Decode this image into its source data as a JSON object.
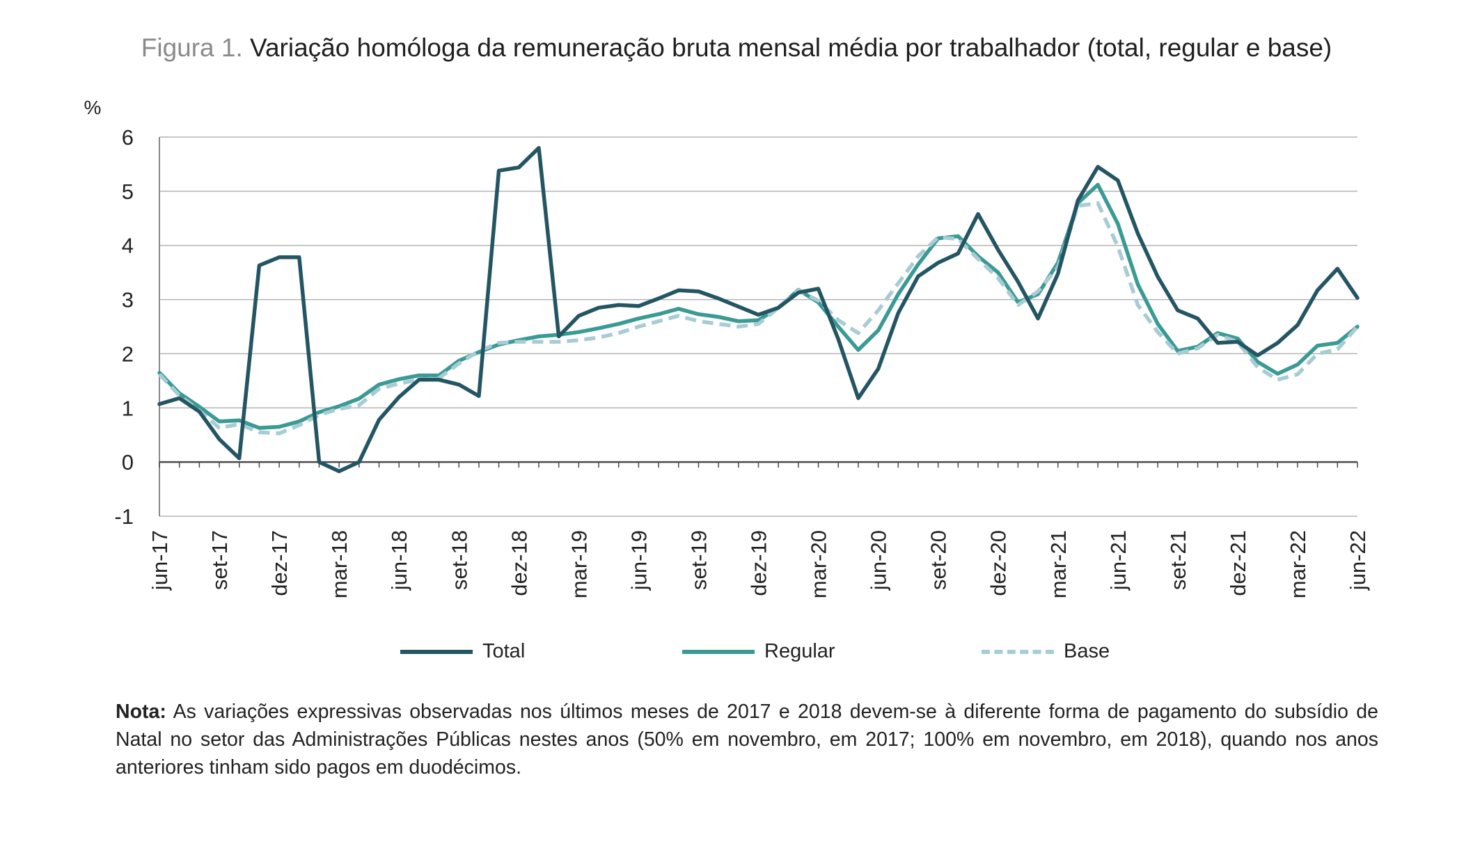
{
  "title": {
    "prefix": "Figura 1.",
    "text": "Variação homóloga da remuneração bruta mensal média por trabalhador (total, regular e base)"
  },
  "note": {
    "label": "Nota:",
    "text": "As variações expressivas observadas nos últimos meses de 2017 e 2018 devem-se à diferente forma de pagamento do subsídio de Natal no setor das Administrações Públicas nestes anos (50% em novembro, em 2017; 100% em novembro, em 2018), quando nos anos anteriores tinham sido pagos em duodécimos."
  },
  "chart_data": {
    "type": "line",
    "ylabel": "%",
    "ylim": [
      -1,
      6
    ],
    "yticks": [
      -1,
      0,
      1,
      2,
      3,
      4,
      5,
      6
    ],
    "grid": true,
    "legend_position": "bottom",
    "x": [
      "jun-17",
      "jul-17",
      "ago-17",
      "set-17",
      "out-17",
      "nov-17",
      "dez-17",
      "jan-18",
      "fev-18",
      "mar-18",
      "abr-18",
      "mai-18",
      "jun-18",
      "jul-18",
      "ago-18",
      "set-18",
      "out-18",
      "nov-18",
      "dez-18",
      "jan-19",
      "fev-19",
      "mar-19",
      "abr-19",
      "mai-19",
      "jun-19",
      "jul-19",
      "ago-19",
      "set-19",
      "out-19",
      "nov-19",
      "dez-19",
      "jan-20",
      "fev-20",
      "mar-20",
      "abr-20",
      "mai-20",
      "jun-20",
      "jul-20",
      "ago-20",
      "set-20",
      "out-20",
      "nov-20",
      "dez-20",
      "jan-21",
      "fev-21",
      "mar-21",
      "abr-21",
      "mai-21",
      "jun-21",
      "jul-21",
      "ago-21",
      "set-21",
      "out-21",
      "nov-21",
      "dez-21",
      "jan-22",
      "fev-22",
      "mar-22",
      "abr-22",
      "mai-22",
      "jun-22"
    ],
    "xtick_labels": [
      "jun-17",
      "set-17",
      "dez-17",
      "mar-18",
      "jun-18",
      "set-18",
      "dez-18",
      "mar-19",
      "jun-19",
      "set-19",
      "dez-19",
      "mar-20",
      "jun-20",
      "set-20",
      "dez-20",
      "mar-21",
      "jun-21",
      "set-21",
      "dez-21",
      "mar-22",
      "jun-22"
    ],
    "series": [
      {
        "name": "Total",
        "color": "#245563",
        "dash": "solid",
        "values": [
          1.07,
          1.18,
          0.93,
          0.42,
          0.07,
          3.63,
          3.78,
          3.78,
          0.0,
          -0.17,
          0.0,
          0.78,
          1.2,
          1.52,
          1.52,
          1.43,
          1.22,
          5.38,
          5.44,
          5.8,
          2.32,
          2.7,
          2.85,
          2.9,
          2.88,
          3.02,
          3.17,
          3.15,
          3.02,
          2.87,
          2.72,
          2.85,
          3.13,
          3.2,
          2.27,
          1.18,
          1.72,
          2.75,
          3.43,
          3.68,
          3.85,
          4.58,
          3.92,
          3.33,
          2.65,
          3.48,
          4.83,
          5.45,
          5.2,
          4.22,
          3.42,
          2.8,
          2.65,
          2.2,
          2.22,
          1.97,
          2.2,
          2.53,
          3.17,
          3.57,
          3.03
        ]
      },
      {
        "name": "Regular",
        "color": "#3a9a94",
        "dash": "solid",
        "values": [
          1.65,
          1.27,
          1.02,
          0.75,
          0.77,
          0.63,
          0.65,
          0.75,
          0.92,
          1.03,
          1.17,
          1.43,
          1.53,
          1.6,
          1.6,
          1.87,
          2.03,
          2.17,
          2.25,
          2.32,
          2.35,
          2.4,
          2.47,
          2.55,
          2.65,
          2.73,
          2.83,
          2.73,
          2.68,
          2.6,
          2.62,
          2.85,
          3.18,
          2.95,
          2.5,
          2.07,
          2.43,
          3.1,
          3.65,
          4.13,
          4.17,
          3.8,
          3.5,
          2.95,
          3.1,
          3.68,
          4.78,
          5.12,
          4.4,
          3.28,
          2.55,
          2.05,
          2.13,
          2.38,
          2.28,
          1.85,
          1.63,
          1.8,
          2.15,
          2.2,
          2.5
        ]
      },
      {
        "name": "Base",
        "color": "#a8ccd4",
        "dash": "dashed",
        "values": [
          1.62,
          1.23,
          0.95,
          0.63,
          0.7,
          0.55,
          0.53,
          0.68,
          0.87,
          0.98,
          1.05,
          1.35,
          1.45,
          1.52,
          1.55,
          1.82,
          2.05,
          2.2,
          2.22,
          2.22,
          2.22,
          2.25,
          2.3,
          2.38,
          2.5,
          2.6,
          2.7,
          2.6,
          2.55,
          2.5,
          2.55,
          2.85,
          3.17,
          2.98,
          2.62,
          2.38,
          2.8,
          3.3,
          3.8,
          4.15,
          4.12,
          3.75,
          3.4,
          2.9,
          3.15,
          3.6,
          4.73,
          4.78,
          3.98,
          2.9,
          2.4,
          2.0,
          2.1,
          2.35,
          2.22,
          1.75,
          1.52,
          1.62,
          2.0,
          2.08,
          2.5
        ]
      }
    ]
  }
}
